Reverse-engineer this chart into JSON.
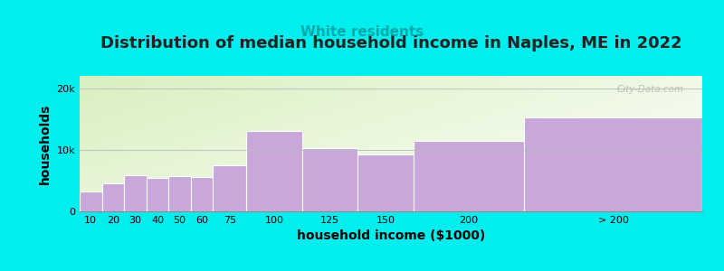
{
  "title": "Distribution of median household income in Naples, ME in 2022",
  "subtitle": "White residents",
  "xlabel": "household income ($1000)",
  "ylabel": "households",
  "background_color": "#00EEEE",
  "bar_color": "#c8a8d8",
  "bar_edge_color": "#ffffff",
  "categories": [
    "10",
    "20",
    "30",
    "40",
    "50",
    "60",
    "75",
    "100",
    "125",
    "150",
    "200",
    "> 200"
  ],
  "left_edges": [
    0,
    10,
    20,
    30,
    40,
    50,
    60,
    75,
    100,
    125,
    150,
    200
  ],
  "widths": [
    10,
    10,
    10,
    10,
    10,
    10,
    15,
    25,
    25,
    25,
    50,
    80
  ],
  "values": [
    3200,
    4500,
    5900,
    5500,
    5700,
    5600,
    7500,
    13000,
    10200,
    9200,
    11500,
    15200
  ],
  "ylim": [
    0,
    22000
  ],
  "yticks": [
    0,
    10000,
    20000
  ],
  "ytick_labels": [
    "0",
    "10k",
    "20k"
  ],
  "xtick_positions": [
    5,
    15,
    25,
    35,
    45,
    55,
    67.5,
    87.5,
    112.5,
    137.5,
    175,
    240
  ],
  "xtick_labels": [
    "10",
    "20",
    "30",
    "40",
    "50",
    "60",
    "75",
    "100",
    "125",
    "150",
    "200",
    "> 200"
  ],
  "title_fontsize": 13,
  "subtitle_fontsize": 11,
  "subtitle_color": "#00aaaa",
  "axis_label_fontsize": 10,
  "tick_fontsize": 8,
  "watermark": "City-Data.com"
}
